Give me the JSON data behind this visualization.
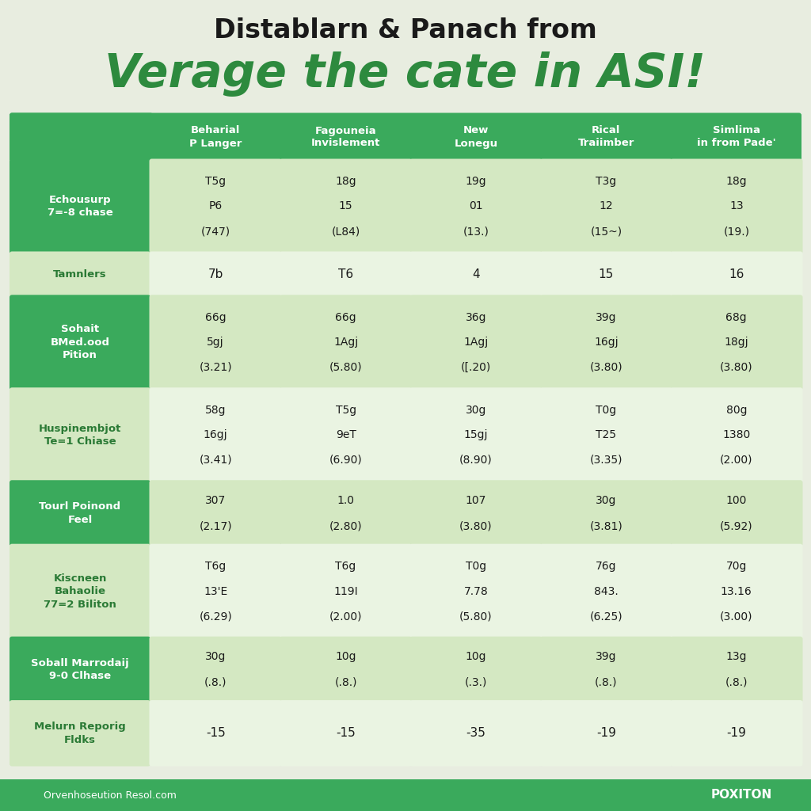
{
  "title_line1": "Distablarn & Panach from",
  "title_line2": "Verage the cate in ASI!",
  "bg_color": "#e8ede0",
  "header_bg": "#3aaa5c",
  "header_text_color": "#ffffff",
  "row_label_bg_dark": "#3aaa5c",
  "row_label_bg_light": "#d4e8c2",
  "cell_bg_dark": "#d4e8c2",
  "cell_bg_light": "#eaf4e2",
  "footer_bg": "#3aaa5c",
  "footer_text": "Orvenhoseution Resol.com",
  "footer_brand": "POXITON",
  "col_headers": [
    [
      "Beharial",
      "P Langer"
    ],
    [
      "Fagouneia",
      "Invislement"
    ],
    [
      "New",
      "Lonegu"
    ],
    [
      "Rical",
      "Traiimber"
    ],
    [
      "Simlima",
      "in from Pade'"
    ]
  ],
  "rows": [
    {
      "label": [
        "Echousurp",
        "7=-8 chase"
      ],
      "values": [
        [
          "T5g",
          "P6",
          "(747)"
        ],
        [
          "18g",
          "15",
          "(L84)"
        ],
        [
          "19g",
          "01",
          "(13.)"
        ],
        [
          "T3g",
          "12",
          "(15~)"
        ],
        [
          "18g",
          "13",
          "(19.)"
        ]
      ],
      "label_dark": true
    },
    {
      "label": [
        "Tamnlers",
        ""
      ],
      "values": [
        [
          "7b",
          "",
          ""
        ],
        [
          "T6",
          "",
          ""
        ],
        [
          "4",
          "",
          ""
        ],
        [
          "15",
          "",
          ""
        ],
        [
          "16",
          "",
          ""
        ]
      ],
      "label_dark": false
    },
    {
      "label": [
        "Sohait",
        "BMed.ood",
        "Pition"
      ],
      "values": [
        [
          "66g",
          "5gj",
          "(3.21)"
        ],
        [
          "66g",
          "1Agj",
          "(5.80)"
        ],
        [
          "36g",
          "1Agj",
          "([.20)"
        ],
        [
          "39g",
          "16gj",
          "(3.80)"
        ],
        [
          "68g",
          "18gj",
          "(3.80)"
        ]
      ],
      "label_dark": true
    },
    {
      "label": [
        "Huspinembjot",
        "Te=1 Chiase"
      ],
      "values": [
        [
          "58g",
          "16gj",
          "(3.41)"
        ],
        [
          "T5g",
          "9eT",
          "(6.90)"
        ],
        [
          "30g",
          "15gj",
          "(8.90)"
        ],
        [
          "T0g",
          "T25",
          "(3.35)"
        ],
        [
          "80g",
          "1380",
          "(2.00)"
        ]
      ],
      "label_dark": false
    },
    {
      "label": [
        "Tourl Poinond",
        "Feel"
      ],
      "values": [
        [
          "307",
          "",
          "(2.17)"
        ],
        [
          "1.0",
          "",
          "(2.80)"
        ],
        [
          "107",
          "",
          "(3.80)"
        ],
        [
          "30g",
          "",
          "(3.81)"
        ],
        [
          "100",
          "",
          "(5.92)"
        ]
      ],
      "label_dark": true
    },
    {
      "label": [
        "Kiscneen",
        "Bahaolie",
        "77=2 Biliton"
      ],
      "values": [
        [
          "T6g",
          "13'E",
          "(6.29)"
        ],
        [
          "T6g",
          "119I",
          "(2.00)"
        ],
        [
          "T0g",
          "7.78",
          "(5.80)"
        ],
        [
          "76g",
          "843.",
          "(6.25)"
        ],
        [
          "70g",
          "13.16",
          "(3.00)"
        ]
      ],
      "label_dark": false
    },
    {
      "label": [
        "Soball Marrodaij",
        "9-0 Clhase"
      ],
      "values": [
        [
          "30g",
          "",
          "(.8.)"
        ],
        [
          "10g",
          "",
          "(.8.)"
        ],
        [
          "10g",
          "",
          "(.3.)"
        ],
        [
          "39g",
          "",
          "(.8.)"
        ],
        [
          "13g",
          "",
          "(.8.)"
        ]
      ],
      "label_dark": true
    },
    {
      "label": [
        "Melurn Reporig",
        "Fldks"
      ],
      "values": [
        [
          "-15",
          "",
          ""
        ],
        [
          "-15",
          "",
          ""
        ],
        [
          "-35",
          "",
          ""
        ],
        [
          "-19",
          "",
          ""
        ],
        [
          "-19",
          "",
          ""
        ]
      ],
      "label_dark": false
    }
  ]
}
